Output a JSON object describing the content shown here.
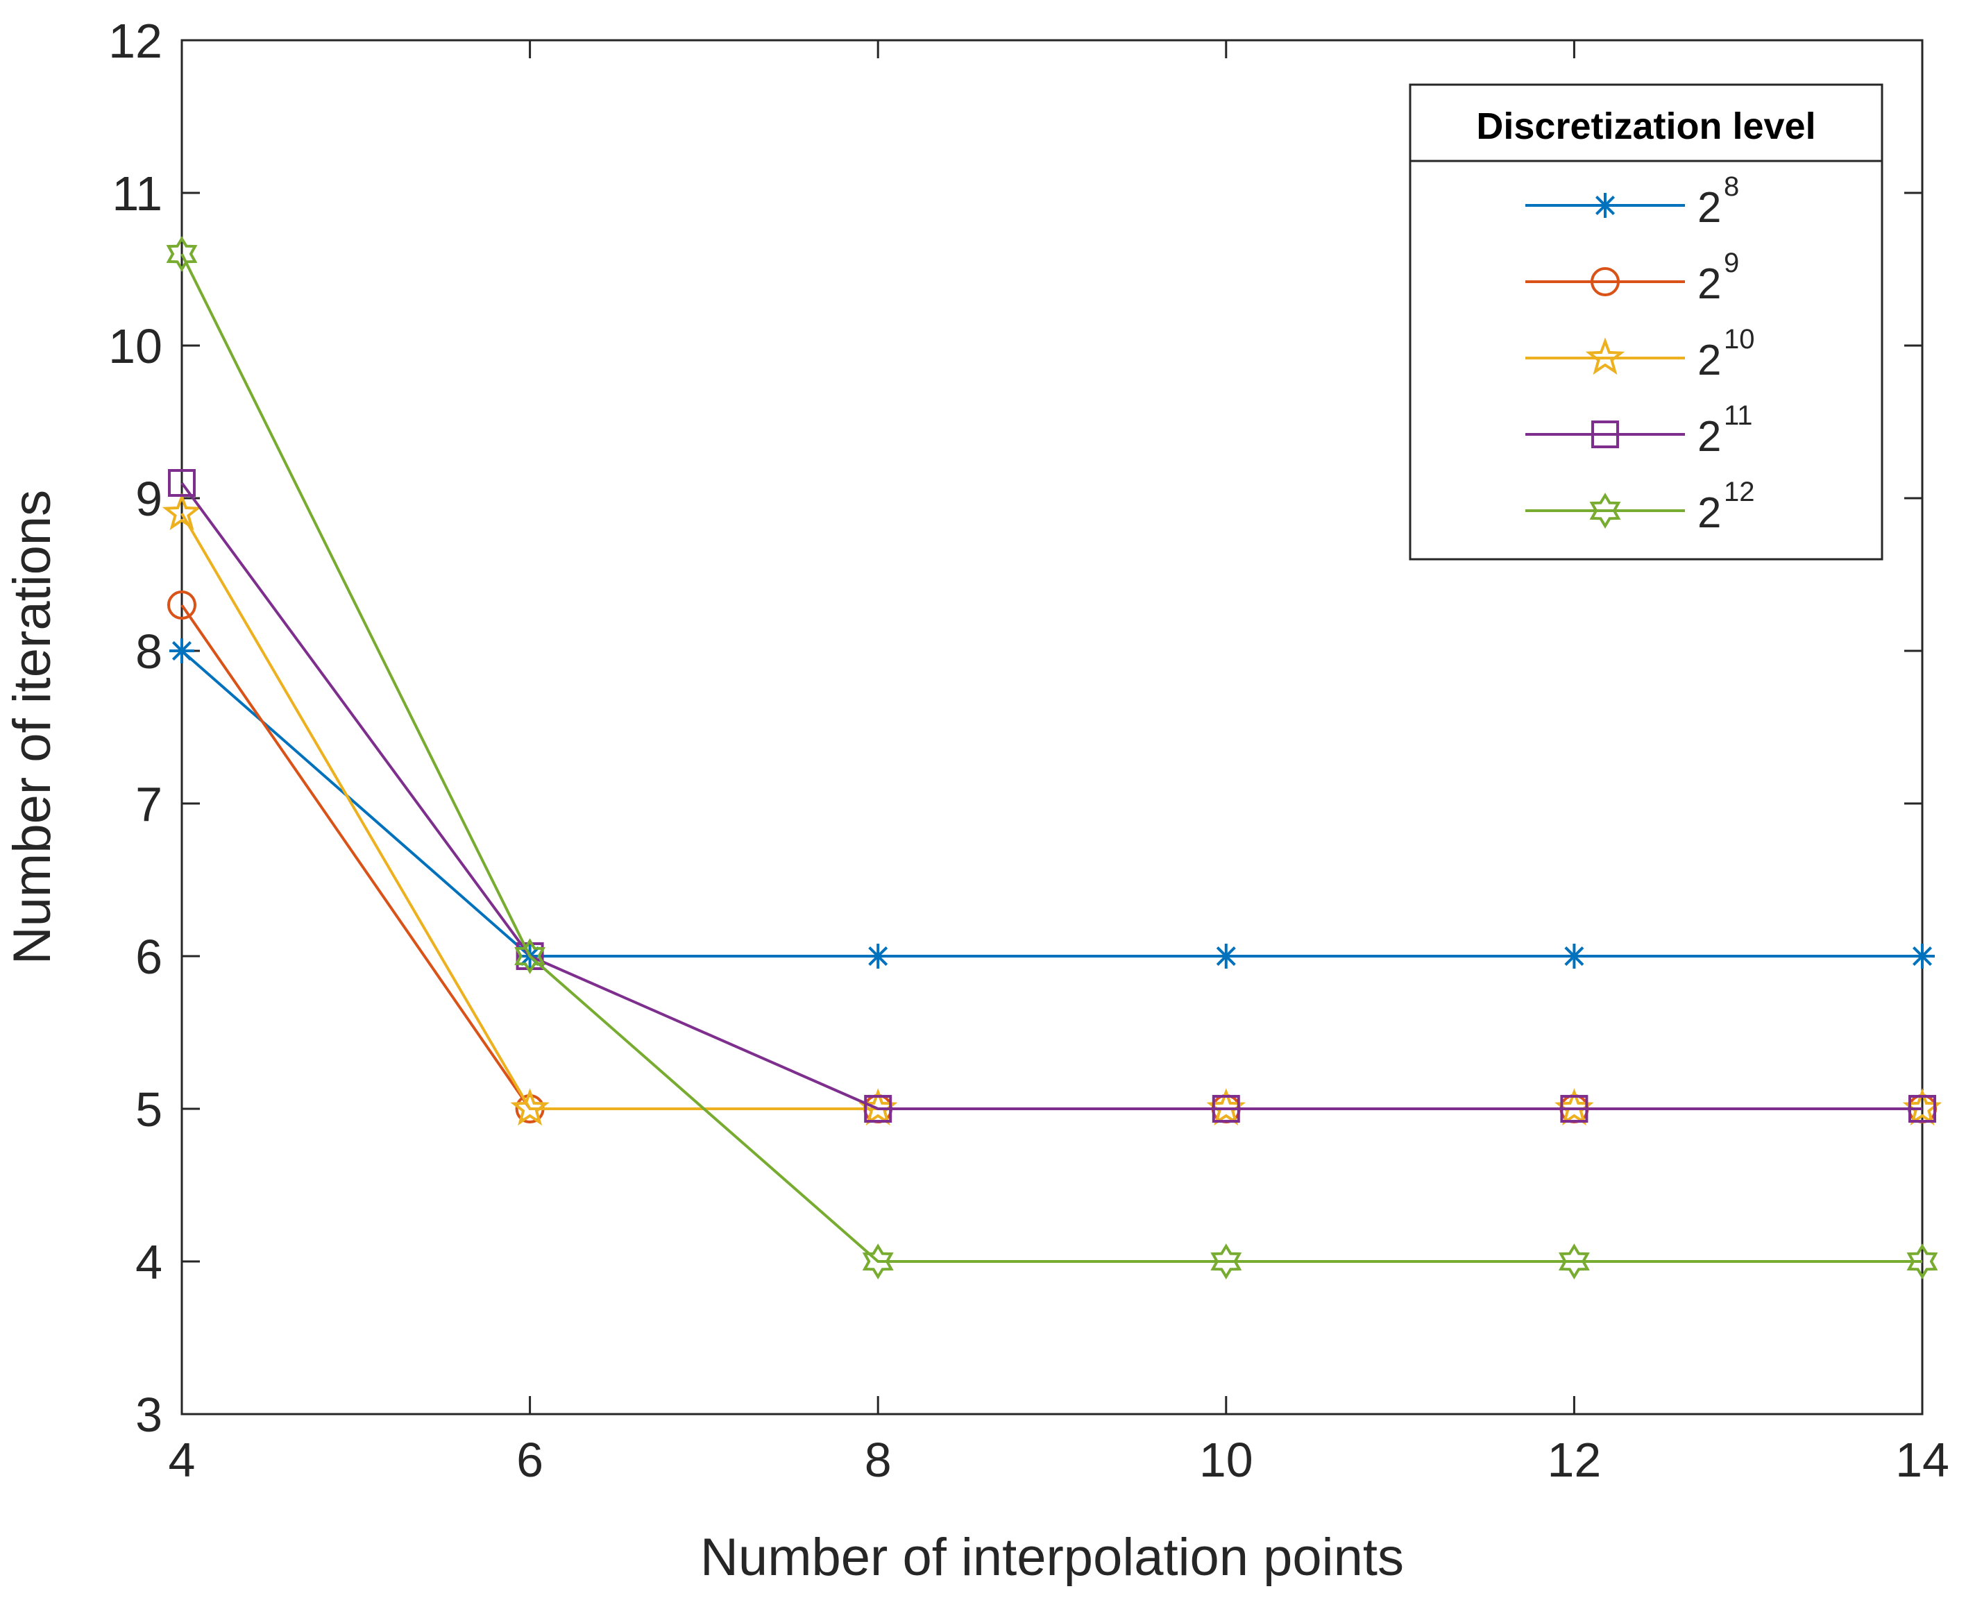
{
  "chart_data": {
    "type": "line",
    "title": "",
    "xlabel": "Number of interpolation points",
    "ylabel": "Number of iterations",
    "x": [
      4,
      6,
      8,
      10,
      12,
      14
    ],
    "xlim": [
      4,
      14
    ],
    "ylim": [
      3,
      12
    ],
    "xticks": [
      "4",
      "6",
      "8",
      "10",
      "12",
      "14"
    ],
    "yticks": [
      "3",
      "4",
      "5",
      "6",
      "7",
      "8",
      "9",
      "10",
      "11",
      "12"
    ],
    "grid": false,
    "legend": {
      "title": "Discretization level",
      "position": "top-right"
    },
    "series": [
      {
        "name": "2^8",
        "base": "2",
        "exponent": "8",
        "color": "#0072BD",
        "marker": "asterisk",
        "values": [
          8.0,
          6,
          6,
          6,
          6,
          6
        ]
      },
      {
        "name": "2^9",
        "base": "2",
        "exponent": "9",
        "color": "#D95319",
        "marker": "circle",
        "values": [
          8.3,
          5,
          5,
          5,
          5,
          5
        ]
      },
      {
        "name": "2^10",
        "base": "2",
        "exponent": "10",
        "color": "#EDB120",
        "marker": "pentagram",
        "values": [
          8.9,
          5,
          5,
          5,
          5,
          5
        ]
      },
      {
        "name": "2^11",
        "base": "2",
        "exponent": "11",
        "color": "#7E2F8E",
        "marker": "square",
        "values": [
          9.1,
          6,
          5,
          5,
          5,
          5
        ]
      },
      {
        "name": "2^12",
        "base": "2",
        "exponent": "12",
        "color": "#77AC30",
        "marker": "hexagram",
        "values": [
          10.6,
          6,
          4,
          4,
          4,
          4
        ]
      }
    ]
  }
}
